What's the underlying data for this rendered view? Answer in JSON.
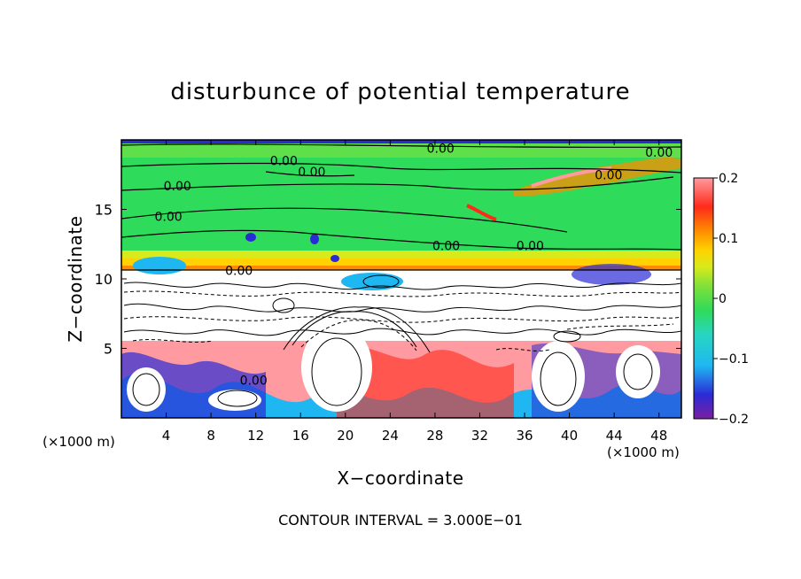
{
  "chart_data": {
    "type": "heatmap",
    "title": "disturbunce of potential temperature",
    "xlabel": "X−coordinate",
    "ylabel": "Z−coordinate",
    "x_unit_left": "(×1000 m)",
    "x_unit_right": "(×1000 m)",
    "xlim": [
      0,
      50
    ],
    "ylim": [
      0,
      20
    ],
    "x_ticks": [
      "4",
      "8",
      "12",
      "16",
      "20",
      "24",
      "28",
      "32",
      "36",
      "40",
      "44",
      "48"
    ],
    "y_ticks": [
      "5",
      "10",
      "15"
    ],
    "colorbar": {
      "range": [
        -0.2,
        0.2
      ],
      "tick_labels": [
        "0.2",
        "0.1",
        "0",
        "−0.1",
        "−0.2"
      ],
      "colors": [
        "#7a1fa2",
        "#2b2bd6",
        "#1fb7f2",
        "#27d6c1",
        "#2fdb5a",
        "#7fe03a",
        "#d8ea1c",
        "#ffd200",
        "#ff8c00",
        "#ff2a1a",
        "#ff9aa0"
      ]
    },
    "contour_labels": [
      {
        "text": "0.00",
        "x": 28.5,
        "y": 19.4
      },
      {
        "text": "0.00",
        "x": 48.0,
        "y": 19.1
      },
      {
        "text": "0.00",
        "x": 14.5,
        "y": 18.5
      },
      {
        "text": "0.00",
        "x": 17.0,
        "y": 17.7
      },
      {
        "text": "0.00",
        "x": 43.5,
        "y": 17.5
      },
      {
        "text": "0.00",
        "x": 5.0,
        "y": 16.7
      },
      {
        "text": "0.00",
        "x": 4.2,
        "y": 14.5
      },
      {
        "text": "0.00",
        "x": 29.0,
        "y": 12.4
      },
      {
        "text": "0.00",
        "x": 36.5,
        "y": 12.4
      },
      {
        "text": "0.00",
        "x": 10.5,
        "y": 10.6
      },
      {
        "text": "0.00",
        "x": 11.8,
        "y": 2.7
      }
    ],
    "grid": false
  },
  "footer": {
    "contour_interval": "CONTOUR INTERVAL = 3.000E−01"
  }
}
